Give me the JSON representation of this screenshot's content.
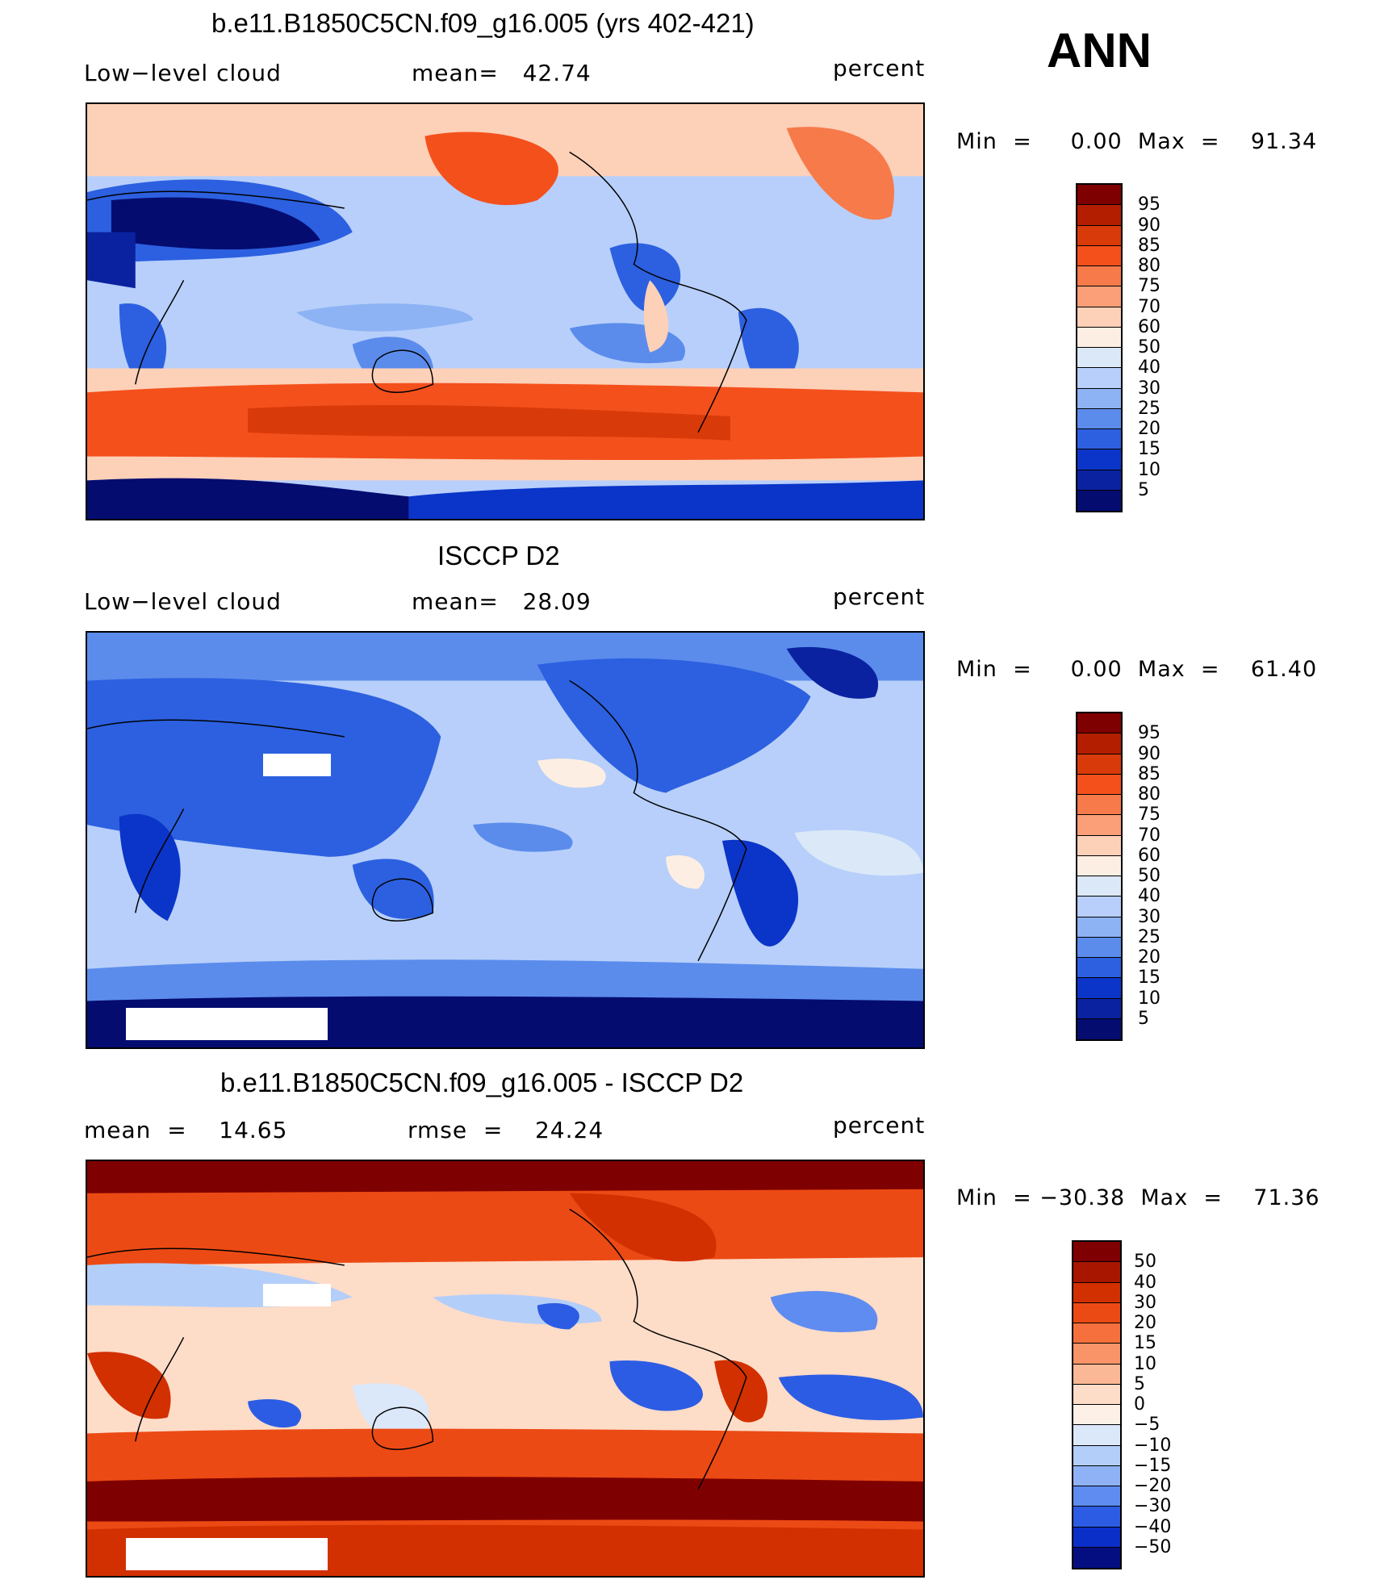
{
  "season_label": "ANN",
  "panels": [
    {
      "title": "b.e11.B1850C5CN.f09_g16.005 (yrs 402-421)",
      "left_label": "Low−level cloud",
      "mid_label": "mean=   42.74",
      "right_label": "percent",
      "minmax": "Min  =     0.00  Max  =    91.34",
      "colorbar": {
        "labels": [
          "95",
          "90",
          "85",
          "80",
          "75",
          "70",
          "60",
          "50",
          "40",
          "30",
          "25",
          "20",
          "15",
          "10",
          "5"
        ],
        "colors": [
          "#7f0000",
          "#b31e00",
          "#d93a0a",
          "#f4501c",
          "#f77a4a",
          "#fb9f78",
          "#fdd0b8",
          "#fdeee3",
          "#dbe8f7",
          "#b7cffa",
          "#8db3f5",
          "#5b8cec",
          "#2c60e0",
          "#0b35c8",
          "#0a22a0",
          "#050c70"
        ]
      },
      "map_style": "model"
    },
    {
      "title": "ISCCP D2",
      "left_label": "Low−level cloud",
      "mid_label": "mean=   28.09",
      "right_label": "percent",
      "minmax": "Min  =     0.00  Max  =    61.40",
      "colorbar": {
        "labels": [
          "95",
          "90",
          "85",
          "80",
          "75",
          "70",
          "60",
          "50",
          "40",
          "30",
          "25",
          "20",
          "15",
          "10",
          "5"
        ],
        "colors": [
          "#7f0000",
          "#b31e00",
          "#d93a0a",
          "#f4501c",
          "#f77a4a",
          "#fb9f78",
          "#fdd0b8",
          "#fdeee3",
          "#dbe8f7",
          "#b7cffa",
          "#8db3f5",
          "#5b8cec",
          "#2c60e0",
          "#0b35c8",
          "#0a22a0",
          "#050c70"
        ]
      },
      "map_style": "obs"
    },
    {
      "title": "b.e11.B1850C5CN.f09_g16.005 - ISCCP D2",
      "left_label": "mean  =    14.65",
      "mid_label": "rmse  =    24.24",
      "right_label": "percent",
      "minmax": "Min  = −30.38  Max  =    71.36",
      "colorbar": {
        "labels": [
          "50",
          "40",
          "30",
          "20",
          "15",
          "10",
          "5",
          "0",
          "−5",
          "−10",
          "−15",
          "−20",
          "−30",
          "−40",
          "−50"
        ],
        "colors": [
          "#7f0000",
          "#a81600",
          "#d23000",
          "#ec4a14",
          "#f5703c",
          "#f99468",
          "#fbb896",
          "#fddcc8",
          "#fdf0e6",
          "#dbe8fa",
          "#b4cefa",
          "#8fb2f7",
          "#5f8cf0",
          "#2c5ce4",
          "#0a2ec8",
          "#050e80"
        ]
      },
      "map_style": "diff"
    }
  ]
}
